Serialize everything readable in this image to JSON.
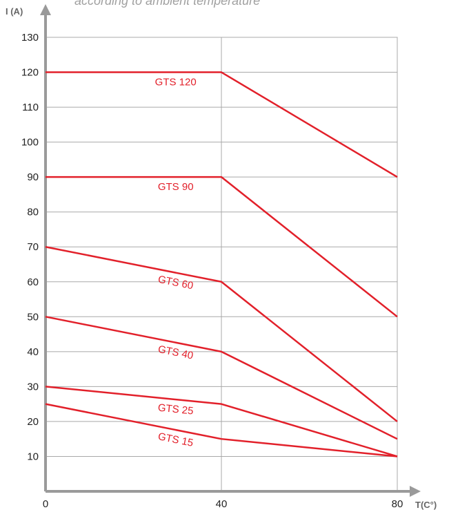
{
  "subtitle": "according to ambient temperature",
  "chart_data": {
    "type": "line",
    "title": "",
    "subtitle": "according to ambient temperature",
    "xlabel": "T(C°)",
    "ylabel": "I (A)",
    "xlim": [
      0,
      80
    ],
    "ylim": [
      0,
      130
    ],
    "x_ticks": [
      0,
      40,
      80
    ],
    "y_ticks": [
      10,
      20,
      30,
      40,
      50,
      60,
      70,
      80,
      90,
      100,
      110,
      120,
      130
    ],
    "grid": true,
    "line_color": "#e2202a",
    "grid_color": "#a8a8a8",
    "axis_color": "#9a9a9a",
    "series": [
      {
        "name": "GTS 120",
        "x": [
          0,
          40,
          80
        ],
        "y": [
          120,
          120,
          90
        ]
      },
      {
        "name": "GTS 90",
        "x": [
          0,
          40,
          80
        ],
        "y": [
          90,
          90,
          50
        ]
      },
      {
        "name": "GTS 60",
        "x": [
          0,
          40,
          80
        ],
        "y": [
          70,
          60,
          20
        ]
      },
      {
        "name": "GTS 40",
        "x": [
          0,
          40,
          80
        ],
        "y": [
          50,
          40,
          15
        ]
      },
      {
        "name": "GTS 25",
        "x": [
          0,
          40,
          80
        ],
        "y": [
          30,
          25,
          10
        ]
      },
      {
        "name": "GTS 15",
        "x": [
          0,
          40,
          80
        ],
        "y": [
          25,
          15,
          10
        ]
      }
    ]
  }
}
